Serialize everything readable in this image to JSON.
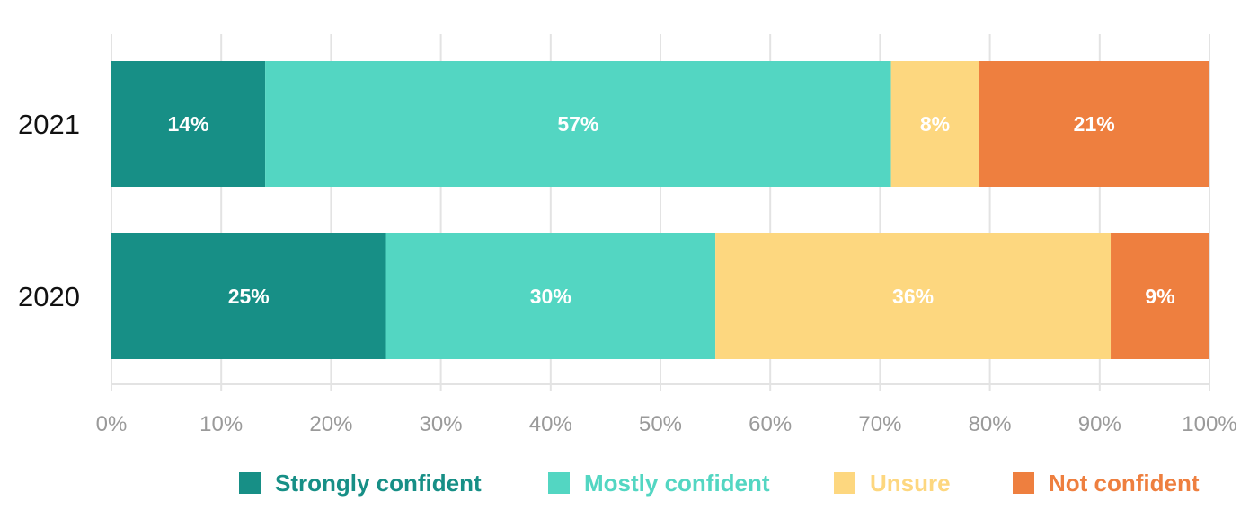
{
  "chart_data": {
    "type": "bar",
    "orientation": "horizontal",
    "stacked": true,
    "categories": [
      "2021",
      "2020"
    ],
    "series": [
      {
        "name": "Strongly confident",
        "values": [
          14,
          25
        ],
        "labels": [
          "14%",
          "25%"
        ],
        "color": "#178F86"
      },
      {
        "name": "Mostly confident",
        "values": [
          57,
          30
        ],
        "labels": [
          "57%",
          "30%"
        ],
        "color": "#53D6C2"
      },
      {
        "name": "Unsure",
        "values": [
          8,
          36
        ],
        "labels": [
          "8%",
          "36%"
        ],
        "color": "#FDD77F"
      },
      {
        "name": "Not confident",
        "values": [
          21,
          9
        ],
        "labels": [
          "21%",
          "9%"
        ],
        "color": "#EE7F3F"
      }
    ],
    "xlim": [
      0,
      100
    ],
    "xticks": [
      0,
      10,
      20,
      30,
      40,
      50,
      60,
      70,
      80,
      90,
      100
    ],
    "xtick_labels": [
      "0%",
      "10%",
      "20%",
      "30%",
      "40%",
      "50%",
      "60%",
      "70%",
      "80%",
      "90%",
      "100%"
    ],
    "grid": true,
    "legend_position": "bottom-right",
    "title": "",
    "xlabel": "",
    "ylabel": ""
  }
}
